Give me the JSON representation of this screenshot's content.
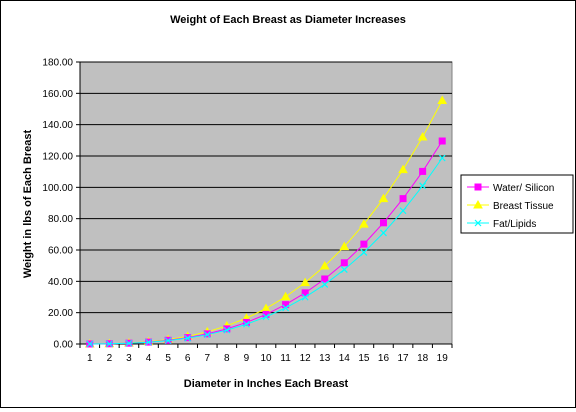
{
  "chart_data": {
    "type": "line",
    "title": "Weight of Each Breast as Diameter Increases",
    "xlabel": "Diameter in Inches Each Breast",
    "ylabel": "Weight in lbs of Each Breast",
    "x": [
      1,
      2,
      3,
      4,
      5,
      6,
      7,
      8,
      9,
      10,
      11,
      12,
      13,
      14,
      15,
      16,
      17,
      18,
      19
    ],
    "ylim": [
      0,
      180
    ],
    "yticks": [
      "0.00",
      "20.00",
      "40.00",
      "60.00",
      "80.00",
      "100.00",
      "120.00",
      "140.00",
      "160.00",
      "180.00"
    ],
    "grid": "horizontal",
    "legend_position": "right",
    "plot_background": "#c0c0c0",
    "series": [
      {
        "name": "Water/ Silicon",
        "color": "#ff00ff",
        "marker": "square",
        "values": [
          0.02,
          0.15,
          0.51,
          1.21,
          2.36,
          4.08,
          6.48,
          9.67,
          13.77,
          18.89,
          25.14,
          32.64,
          41.5,
          51.83,
          63.75,
          77.37,
          92.8,
          110.16,
          129.57
        ]
      },
      {
        "name": "Breast Tissue",
        "color": "#ffff00",
        "marker": "triangle",
        "values": [
          0.02,
          0.18,
          0.61,
          1.45,
          2.83,
          4.89,
          7.77,
          11.6,
          16.52,
          22.66,
          30.16,
          39.16,
          49.79,
          62.18,
          76.48,
          92.82,
          111.33,
          132.15,
          155.43
        ]
      },
      {
        "name": "Fat/Lipids",
        "color": "#00ffff",
        "marker": "x",
        "values": [
          0.02,
          0.14,
          0.47,
          1.11,
          2.16,
          3.74,
          5.94,
          8.86,
          12.62,
          17.31,
          23.04,
          29.91,
          38.03,
          47.5,
          58.43,
          70.91,
          85.05,
          100.95,
          118.73
        ]
      }
    ]
  }
}
